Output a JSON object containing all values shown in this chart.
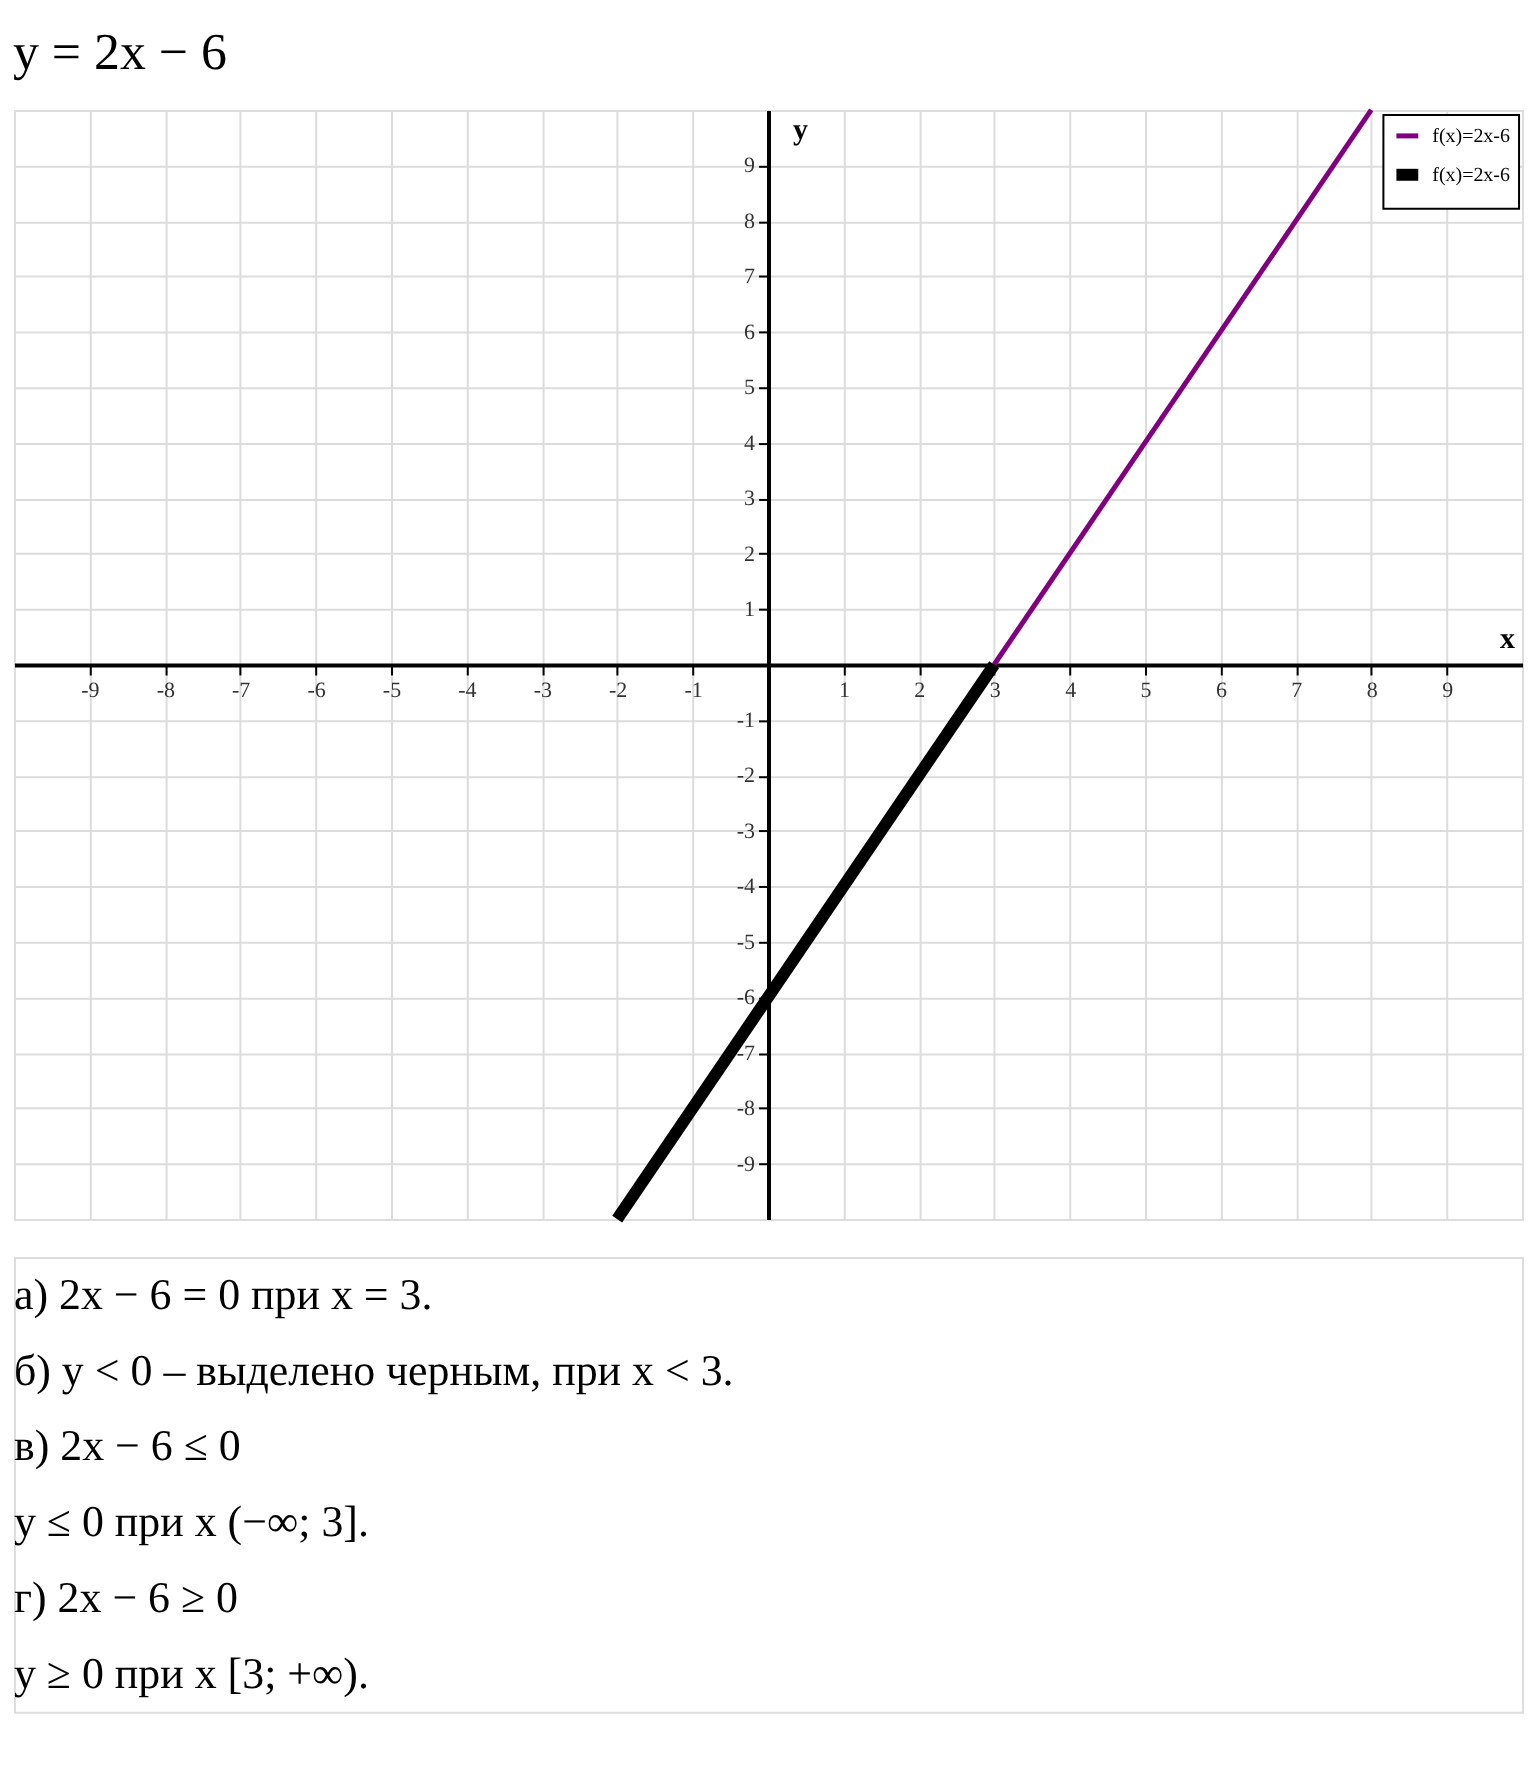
{
  "chart_data": {
    "type": "line",
    "title": "y = 2x − 6",
    "xlabel": "x",
    "ylabel": "y",
    "series": [
      {
        "name": "f(x)=2x-6",
        "color": "#800080",
        "x": [
          3,
          8
        ],
        "values": [
          0,
          10
        ]
      },
      {
        "name": "f(x)=2x-6",
        "color": "#000000",
        "x": [
          -2,
          3
        ],
        "values": [
          -10,
          0
        ]
      }
    ],
    "xlim": [
      -10,
      10
    ],
    "ylim": [
      -10,
      10
    ],
    "xticks": [
      -9,
      -8,
      -7,
      -6,
      -5,
      -4,
      -3,
      -2,
      -1,
      1,
      2,
      3,
      4,
      5,
      6,
      7,
      8,
      9
    ],
    "yticks": [
      -9,
      -8,
      -7,
      -6,
      -5,
      -4,
      -3,
      -2,
      -1,
      1,
      2,
      3,
      4,
      5,
      6,
      7,
      8,
      9
    ],
    "grid": true,
    "legend": "top right",
    "annotations": [
      "а) 2x − 6 = 0  при x = 3.",
      "б) y < 0 – выделено черным, при x < 3.",
      "в) 2x − 6 ≤ 0",
      "y ≤ 0  при x (−∞; 3].",
      "г) 2x − 6 ≥ 0",
      "y ≥ 0  при x [3; +∞)."
    ]
  }
}
